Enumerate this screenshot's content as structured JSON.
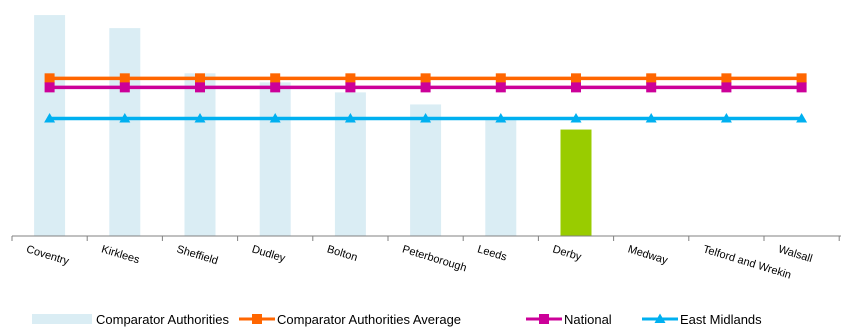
{
  "chart_data": {
    "type": "bar",
    "categories": [
      "Coventry",
      "Kirklees",
      "Sheffield",
      "Dudley",
      "Bolton",
      "Peterborough",
      "Leeds",
      "Derby",
      "Medway",
      "Telford and Wrekin",
      "Walsall"
    ],
    "bars": {
      "name": "Comparator Authorities",
      "values": [
        220,
        207,
        162,
        153,
        143,
        131,
        116,
        106,
        null,
        null,
        null
      ],
      "color": "#daedf4",
      "highlight": {
        "category": "Derby",
        "color": "#99cc00"
      }
    },
    "lines": [
      {
        "name": "Comparator Authorities Average",
        "value": 157,
        "color": "#ff6600",
        "marker": "square"
      },
      {
        "name": "National",
        "value": 148,
        "color": "#cc0099",
        "marker": "square"
      },
      {
        "name": "East Midlands",
        "value": 117,
        "color": "#00b0f0",
        "marker": "triangle"
      }
    ],
    "ylim": [
      0,
      235
    ],
    "grid": false,
    "legend_position": "bottom"
  }
}
